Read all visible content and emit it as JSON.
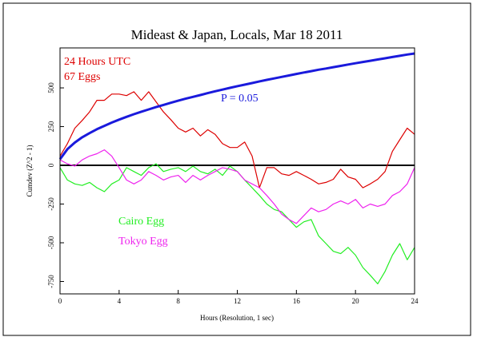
{
  "chart_data": {
    "type": "line",
    "title": "Mideast & Japan, Locals, Mar 18 2011",
    "xlabel": "Hours (Resolution, 1 sec)",
    "ylabel": "Cumdev (Z^2 - 1)",
    "annotations": [
      "24 Hours UTC",
      "67 Eggs"
    ],
    "x": [
      0,
      0.5,
      1,
      1.5,
      2,
      2.5,
      3,
      3.5,
      4,
      4.5,
      5,
      5.5,
      6,
      6.5,
      7,
      7.5,
      8,
      8.5,
      9,
      9.5,
      10,
      10.5,
      11,
      11.5,
      12,
      12.5,
      13,
      13.5,
      14,
      14.5,
      15,
      15.5,
      16,
      16.5,
      17,
      17.5,
      18,
      18.5,
      19,
      19.5,
      20,
      20.5,
      21,
      21.5,
      22,
      22.5,
      23,
      23.5,
      24
    ],
    "xlim": [
      0,
      24
    ],
    "xticks": [
      0,
      4,
      8,
      12,
      16,
      20,
      24
    ],
    "ylim": [
      -830,
      758
    ],
    "yticks": [
      500,
      250,
      0,
      -250,
      -500,
      -750
    ],
    "zero_line": true,
    "series": [
      {
        "color": "#dd0000",
        "values": [
          60,
          140,
          240,
          290,
          345,
          420,
          420,
          460,
          460,
          450,
          475,
          420,
          475,
          410,
          345,
          295,
          240,
          215,
          240,
          190,
          230,
          200,
          140,
          115,
          115,
          150,
          60,
          -145,
          -15,
          -15,
          -55,
          -65,
          -40,
          -65,
          -90,
          -120,
          -110,
          -90,
          -25,
          -75,
          -90,
          -145,
          -120,
          -90,
          -40,
          90,
          165,
          240,
          200
        ]
      },
      {
        "name": "P = 0.05",
        "color": "#1a1adc",
        "values": [
          40,
          104,
          147,
          181,
          208,
          233,
          255,
          276,
          295,
          313,
          330,
          346,
          361,
          376,
          390,
          404,
          417,
          430,
          442,
          454,
          466,
          478,
          489,
          500,
          511,
          521,
          531,
          542,
          552,
          561,
          571,
          580,
          590,
          599,
          608,
          617,
          625,
          634,
          642,
          651,
          659,
          667,
          675,
          683,
          691,
          699,
          707,
          715,
          722
        ]
      },
      {
        "name": "Cairo Egg",
        "color": "#22ee22",
        "values": [
          -15,
          -95,
          -120,
          -130,
          -110,
          -145,
          -170,
          -120,
          -95,
          -15,
          -40,
          -65,
          -15,
          10,
          -40,
          -25,
          -15,
          -40,
          -5,
          -40,
          -55,
          -25,
          -65,
          -5,
          -40,
          -95,
          -145,
          -195,
          -250,
          -285,
          -300,
          -350,
          -400,
          -365,
          -350,
          -455,
          -505,
          -555,
          -570,
          -530,
          -580,
          -660,
          -710,
          -765,
          -685,
          -580,
          -505,
          -610,
          -530
        ]
      },
      {
        "name": "Tokyo Egg",
        "color": "#ee22ee",
        "values": [
          35,
          10,
          -5,
          35,
          60,
          75,
          100,
          60,
          -15,
          -95,
          -120,
          -95,
          -40,
          -65,
          -95,
          -75,
          -65,
          -110,
          -65,
          -95,
          -65,
          -40,
          -15,
          -25,
          -40,
          -95,
          -120,
          -145,
          -195,
          -250,
          -315,
          -350,
          -375,
          -325,
          -275,
          -300,
          -285,
          -250,
          -230,
          -250,
          -220,
          -275,
          -250,
          -265,
          -250,
          -195,
          -170,
          -120,
          -15
        ]
      }
    ]
  }
}
